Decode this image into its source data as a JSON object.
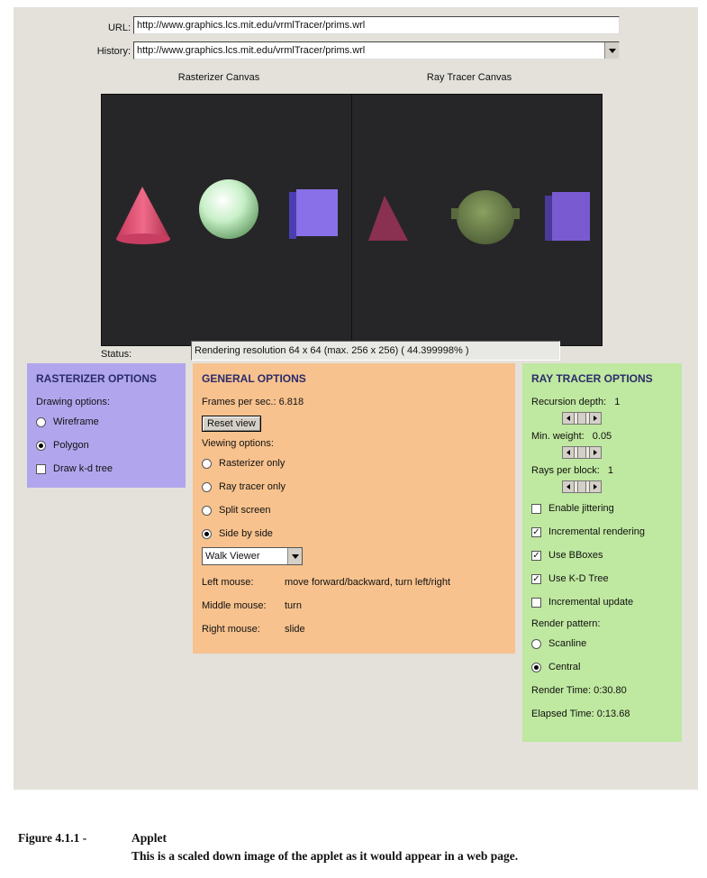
{
  "address": {
    "url_label": "URL:",
    "url_value": "http://www.graphics.lcs.mit.edu/vrmlTracer/prims.wrl",
    "history_label": "History:",
    "history_value": "http://www.graphics.lcs.mit.edu/vrmlTracer/prims.wrl"
  },
  "canvases": {
    "rasterizer_title": "Rasterizer Canvas",
    "raytracer_title": "Ray Tracer Canvas",
    "background": "#262628"
  },
  "status": {
    "label": "Status:",
    "value": "Rendering resolution 64 x 64 (max. 256 x 256) ( 44.399998% )"
  },
  "rasterizer": {
    "title": "RASTERIZER OPTIONS",
    "drawing_label": "Drawing options:",
    "options": [
      {
        "label": "Wireframe",
        "selected": false
      },
      {
        "label": "Polygon",
        "selected": true
      }
    ],
    "kd_tree_label": "Draw k-d tree",
    "kd_tree_checked": false,
    "color": "#b1a6ed"
  },
  "general": {
    "title": "GENERAL OPTIONS",
    "fps_label": "Frames per sec.: 6.818",
    "reset_label": "Reset view",
    "viewing_label": "Viewing options:",
    "views": [
      {
        "label": "Rasterizer only",
        "selected": false
      },
      {
        "label": "Ray tracer only",
        "selected": false
      },
      {
        "label": "Split screen",
        "selected": false
      },
      {
        "label": "Side by side",
        "selected": true
      }
    ],
    "viewer_select": "Walk Viewer",
    "mouse": [
      {
        "key": "Left mouse:",
        "value": "move forward/backward, turn left/right"
      },
      {
        "key": "Middle mouse:",
        "value": "turn"
      },
      {
        "key": "Right mouse:",
        "value": "slide"
      }
    ],
    "color": "#f7c28e"
  },
  "tracer": {
    "title": "RAY TRACER OPTIONS",
    "recursion_label": "Recursion depth:",
    "recursion_value": "1",
    "min_weight_label": "Min. weight:",
    "min_weight_value": "0.05",
    "rays_label": "Rays per block:",
    "rays_value": "1",
    "checks": [
      {
        "label": "Enable jittering",
        "checked": false
      },
      {
        "label": "Incremental rendering",
        "checked": true
      },
      {
        "label": "Use BBoxes",
        "checked": true
      },
      {
        "label": "Use K-D Tree",
        "checked": true
      },
      {
        "label": "Incremental update",
        "checked": false
      }
    ],
    "pattern_label": "Render pattern:",
    "patterns": [
      {
        "label": "Scanline",
        "selected": false
      },
      {
        "label": "Central",
        "selected": true
      }
    ],
    "render_time": "Render Time: 0:30.80",
    "elapsed_time": "Elapsed Time: 0:13.68",
    "color": "#bfe8a0"
  },
  "caption": {
    "figure": "Figure 4.1.1 -",
    "title": "Applet",
    "description": "This is a scaled down image of the applet as it would appear in a web page."
  }
}
